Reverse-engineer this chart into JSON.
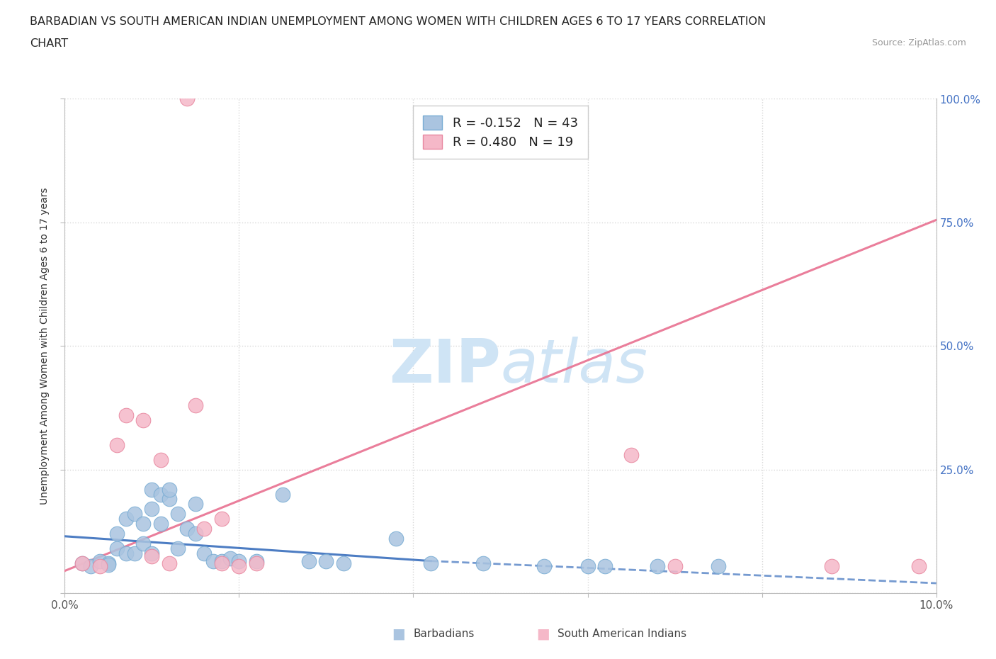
{
  "title_line1": "BARBADIAN VS SOUTH AMERICAN INDIAN UNEMPLOYMENT AMONG WOMEN WITH CHILDREN AGES 6 TO 17 YEARS CORRELATION",
  "title_line2": "CHART",
  "source": "Source: ZipAtlas.com",
  "ylabel": "Unemployment Among Women with Children Ages 6 to 17 years",
  "xlim": [
    0.0,
    0.1
  ],
  "ylim": [
    0.0,
    1.0
  ],
  "barbadian_color": "#aac4e0",
  "barbadian_edge_color": "#7aadd4",
  "south_american_color": "#f5b8c8",
  "south_american_edge_color": "#e888a0",
  "barbadian_line_color": "#3a6fbd",
  "south_american_line_color": "#e87090",
  "watermark_color": "#cfe4f5",
  "background_color": "#ffffff",
  "grid_color": "#d8d8d8",
  "blue_text_color": "#4472c4",
  "axis_color": "#bbbbbb",
  "barbadian_x": [
    0.002,
    0.003,
    0.004,
    0.005,
    0.005,
    0.006,
    0.006,
    0.007,
    0.007,
    0.008,
    0.008,
    0.009,
    0.009,
    0.01,
    0.01,
    0.01,
    0.011,
    0.011,
    0.012,
    0.012,
    0.013,
    0.013,
    0.014,
    0.015,
    0.015,
    0.016,
    0.017,
    0.018,
    0.019,
    0.02,
    0.022,
    0.025,
    0.028,
    0.03,
    0.032,
    0.038,
    0.042,
    0.048,
    0.055,
    0.06,
    0.062,
    0.068,
    0.075
  ],
  "barbadian_y": [
    0.06,
    0.055,
    0.065,
    0.06,
    0.058,
    0.12,
    0.09,
    0.15,
    0.08,
    0.16,
    0.08,
    0.14,
    0.1,
    0.21,
    0.17,
    0.08,
    0.2,
    0.14,
    0.19,
    0.21,
    0.16,
    0.09,
    0.13,
    0.18,
    0.12,
    0.08,
    0.065,
    0.065,
    0.07,
    0.065,
    0.065,
    0.2,
    0.065,
    0.065,
    0.06,
    0.11,
    0.06,
    0.06,
    0.055,
    0.055,
    0.055,
    0.055,
    0.055
  ],
  "south_american_x": [
    0.002,
    0.004,
    0.006,
    0.007,
    0.009,
    0.01,
    0.011,
    0.012,
    0.014,
    0.015,
    0.016,
    0.018,
    0.018,
    0.02,
    0.022,
    0.065,
    0.07,
    0.088,
    0.098
  ],
  "south_american_y": [
    0.06,
    0.055,
    0.3,
    0.36,
    0.35,
    0.075,
    0.27,
    0.06,
    1.0,
    0.38,
    0.13,
    0.15,
    0.06,
    0.055,
    0.06,
    0.28,
    0.055,
    0.055,
    0.055
  ],
  "pink_line_x0": 0.0,
  "pink_line_y0": 0.045,
  "pink_line_x1": 0.1,
  "pink_line_y1": 0.755,
  "blue_line_solid_x0": 0.0,
  "blue_line_solid_y0": 0.115,
  "blue_line_solid_x1": 0.042,
  "blue_line_solid_y1": 0.065,
  "blue_line_dash_x0": 0.042,
  "blue_line_dash_y0": 0.065,
  "blue_line_dash_x1": 0.1,
  "blue_line_dash_y1": 0.02
}
